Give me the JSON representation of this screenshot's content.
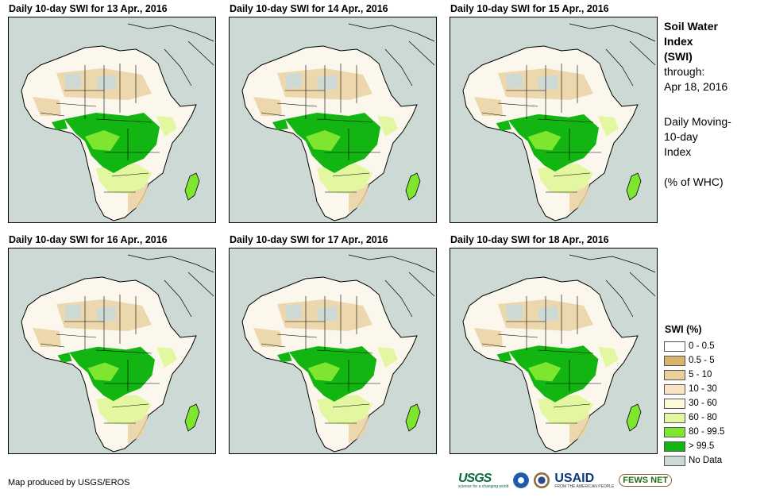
{
  "panels": [
    {
      "title": "Daily 10-day  SWI for 13 Apr., 2016"
    },
    {
      "title": "Daily 10-day  SWI for 14 Apr., 2016"
    },
    {
      "title": "Daily 10-day  SWI for 15 Apr., 2016"
    },
    {
      "title": "Daily 10-day  SWI for 16 Apr., 2016"
    },
    {
      "title": "Daily 10-day  SWI for 17 Apr., 2016"
    },
    {
      "title": "Daily 10-day  SWI for 18 Apr., 2016"
    }
  ],
  "side": {
    "line1": "Soil Water",
    "line2": "Index",
    "line3": "(SWI)",
    "line4": "through:",
    "line5": "Apr 18, 2016",
    "line6": "Daily Moving-",
    "line7": "10-day",
    "line8": "Index",
    "line9": "(% of WHC)"
  },
  "legend": {
    "title": "SWI (%)",
    "items": [
      {
        "label": "0 - 0.5",
        "color": "#ffffff"
      },
      {
        "label": "0.5 - 5",
        "color": "#d7b56d"
      },
      {
        "label": "5 - 10",
        "color": "#ebcf9b"
      },
      {
        "label": "10 - 30",
        "color": "#f8e4c2"
      },
      {
        "label": "30 - 60",
        "color": "#fbfbd6"
      },
      {
        "label": "60 - 80",
        "color": "#e3f7a0"
      },
      {
        "label": "80 - 99.5",
        "color": "#7ee62e"
      },
      {
        "label": "> 99.5",
        "color": "#12b512"
      },
      {
        "label": "No Data",
        "color": "#cdd9d5"
      }
    ]
  },
  "credit": "Map produced by USGS/EROS",
  "logos": {
    "usgs": "USGS",
    "usgs_tag": "science for a changing world",
    "usaid": "USAID",
    "usaid_tag": "FROM THE AMERICAN PEOPLE",
    "fews": "FEWS NET"
  }
}
